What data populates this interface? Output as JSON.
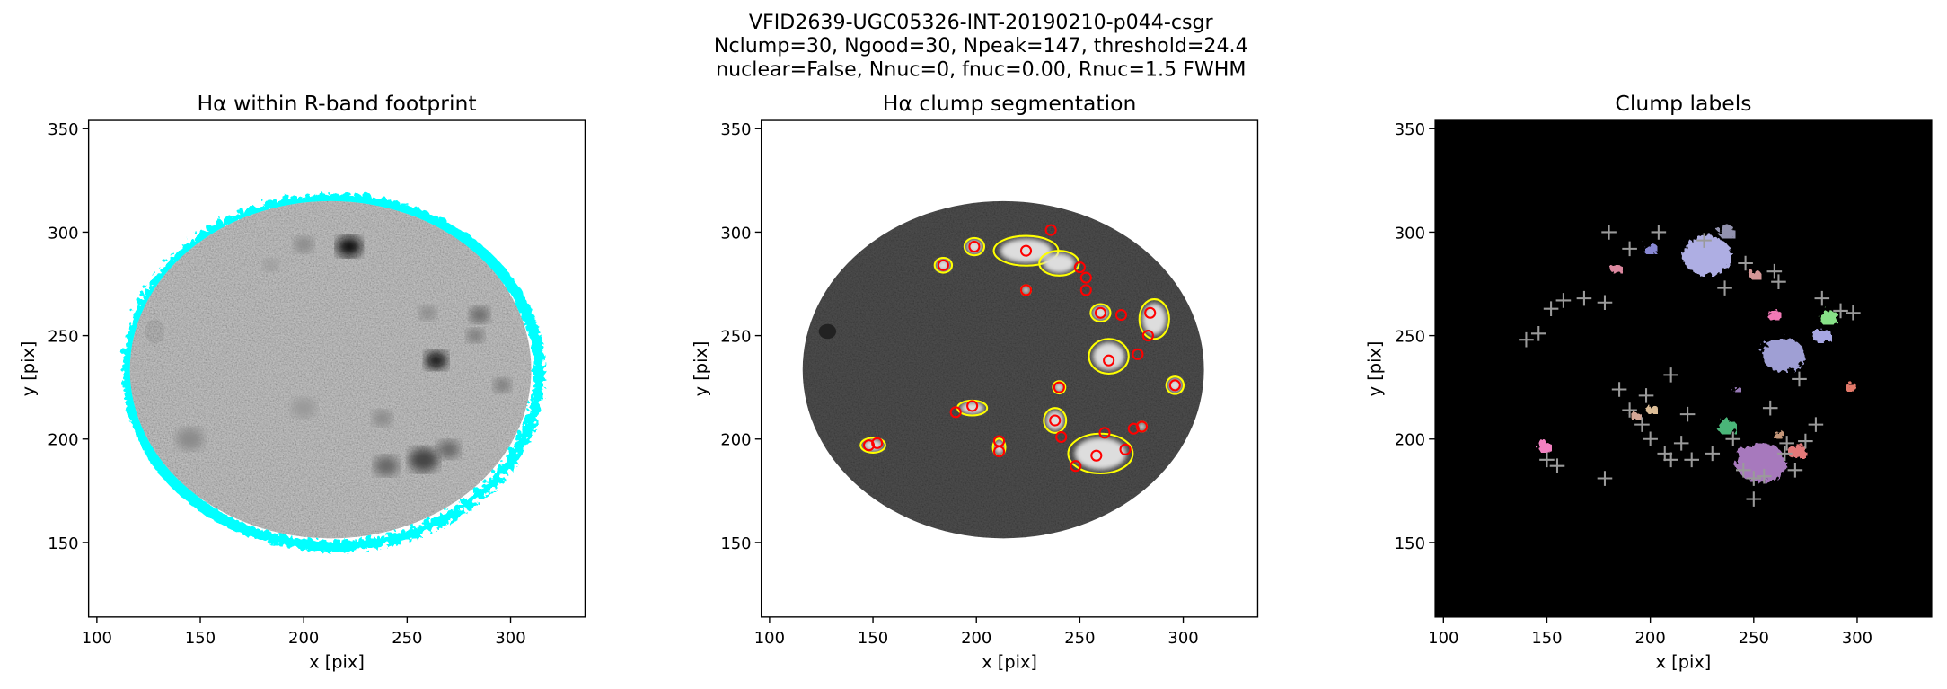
{
  "figure_title": [
    "VFID2639-UGC05326-INT-20190210-p044-csgr",
    "Nclump=30, Ngood=30, Npeak=147, threshold=24.4",
    "nuclear=False, Nnuc=0, fnuc=0.00, Rnuc=1.5 FWHM"
  ],
  "chart_data": [
    {
      "type": "image",
      "title": "Hα within R-band footprint",
      "xlabel": "x [pix]",
      "ylabel": "y [pix]",
      "xlim": [
        96,
        336
      ],
      "ylim": [
        114,
        354
      ],
      "xticks": [
        100,
        150,
        200,
        250,
        300
      ],
      "yticks": [
        150,
        200,
        250,
        300,
        350
      ]
    },
    {
      "type": "image",
      "title": "Hα clump segmentation",
      "xlabel": "x [pix]",
      "ylabel": "y [pix]",
      "xlim": [
        96,
        336
      ],
      "ylim": [
        114,
        354
      ],
      "xticks": [
        100,
        150,
        200,
        250,
        300
      ],
      "yticks": [
        150,
        200,
        250,
        300,
        350
      ],
      "clumps": {
        "x": [
          224,
          236,
          199,
          184,
          224,
          250,
          253,
          260,
          270,
          284,
          283,
          264,
          278,
          296,
          240,
          238,
          241,
          248,
          258,
          262,
          272,
          280,
          198,
          190,
          211,
          211,
          148,
          152,
          253,
          276
        ],
        "y": [
          291,
          301,
          293,
          284,
          272,
          283,
          278,
          261,
          260,
          261,
          250,
          238,
          241,
          226,
          225,
          209,
          201,
          187,
          192,
          203,
          195,
          206,
          216,
          213,
          194,
          199,
          197,
          198,
          272,
          205
        ]
      }
    },
    {
      "type": "image",
      "title": "Clump labels",
      "xlabel": "x [pix]",
      "ylabel": "y [pix]",
      "xlim": [
        96,
        336
      ],
      "ylim": [
        114,
        354
      ],
      "xticks": [
        100,
        150,
        200,
        250,
        300
      ],
      "yticks": [
        150,
        200,
        250,
        300,
        350
      ],
      "peaks": {
        "x": [
          140,
          146,
          152,
          158,
          168,
          178,
          150,
          155,
          185,
          190,
          196,
          200,
          207,
          210,
          215,
          220,
          230,
          240,
          245,
          250,
          255,
          265,
          270,
          275,
          280,
          292,
          298,
          283,
          260,
          246,
          236,
          226,
          204,
          190,
          180,
          178,
          198,
          210,
          218,
          258,
          266,
          272,
          250,
          262
        ],
        "y": [
          248,
          251,
          263,
          267,
          268,
          266,
          190,
          187,
          224,
          214,
          207,
          200,
          193,
          190,
          198,
          190,
          193,
          200,
          185,
          171,
          182,
          193,
          185,
          199,
          207,
          262,
          261,
          268,
          281,
          285,
          273,
          296,
          300,
          292,
          300,
          181,
          221,
          231,
          212,
          215,
          198,
          229,
          181,
          276
        ]
      }
    }
  ]
}
